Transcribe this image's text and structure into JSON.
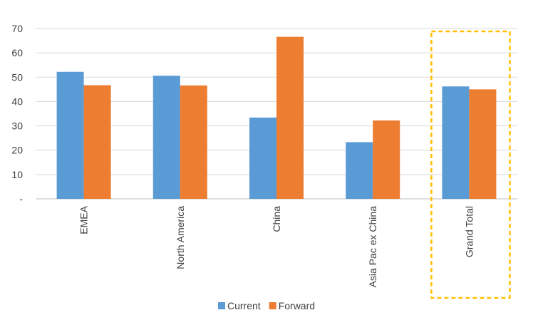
{
  "chart_data": {
    "type": "bar",
    "title": "",
    "xlabel": "",
    "ylabel": "",
    "categories": [
      "EMEA",
      "North America",
      "China",
      "Asia Pac ex China",
      "Grand Total"
    ],
    "series": [
      {
        "name": "Current",
        "color": "#5B9BD5",
        "values": [
          52.2,
          50.6,
          33.4,
          23.3,
          46.2
        ]
      },
      {
        "name": "Forward",
        "color": "#ED7D31",
        "values": [
          46.7,
          46.6,
          66.6,
          32.2,
          45.0
        ]
      }
    ],
    "ylim": [
      0,
      70
    ],
    "yticks": [
      {
        "value": 0,
        "label": "-"
      },
      {
        "value": 10,
        "label": "10"
      },
      {
        "value": 20,
        "label": "20"
      },
      {
        "value": 30,
        "label": "30"
      },
      {
        "value": 40,
        "label": "40"
      },
      {
        "value": 50,
        "label": "50"
      },
      {
        "value": 60,
        "label": "60"
      },
      {
        "value": 70,
        "label": "70"
      }
    ],
    "grid": true,
    "legend_position": "bottom",
    "highlight": {
      "category": "Grand Total",
      "color": "#FFC000",
      "style": "dashed box"
    }
  }
}
